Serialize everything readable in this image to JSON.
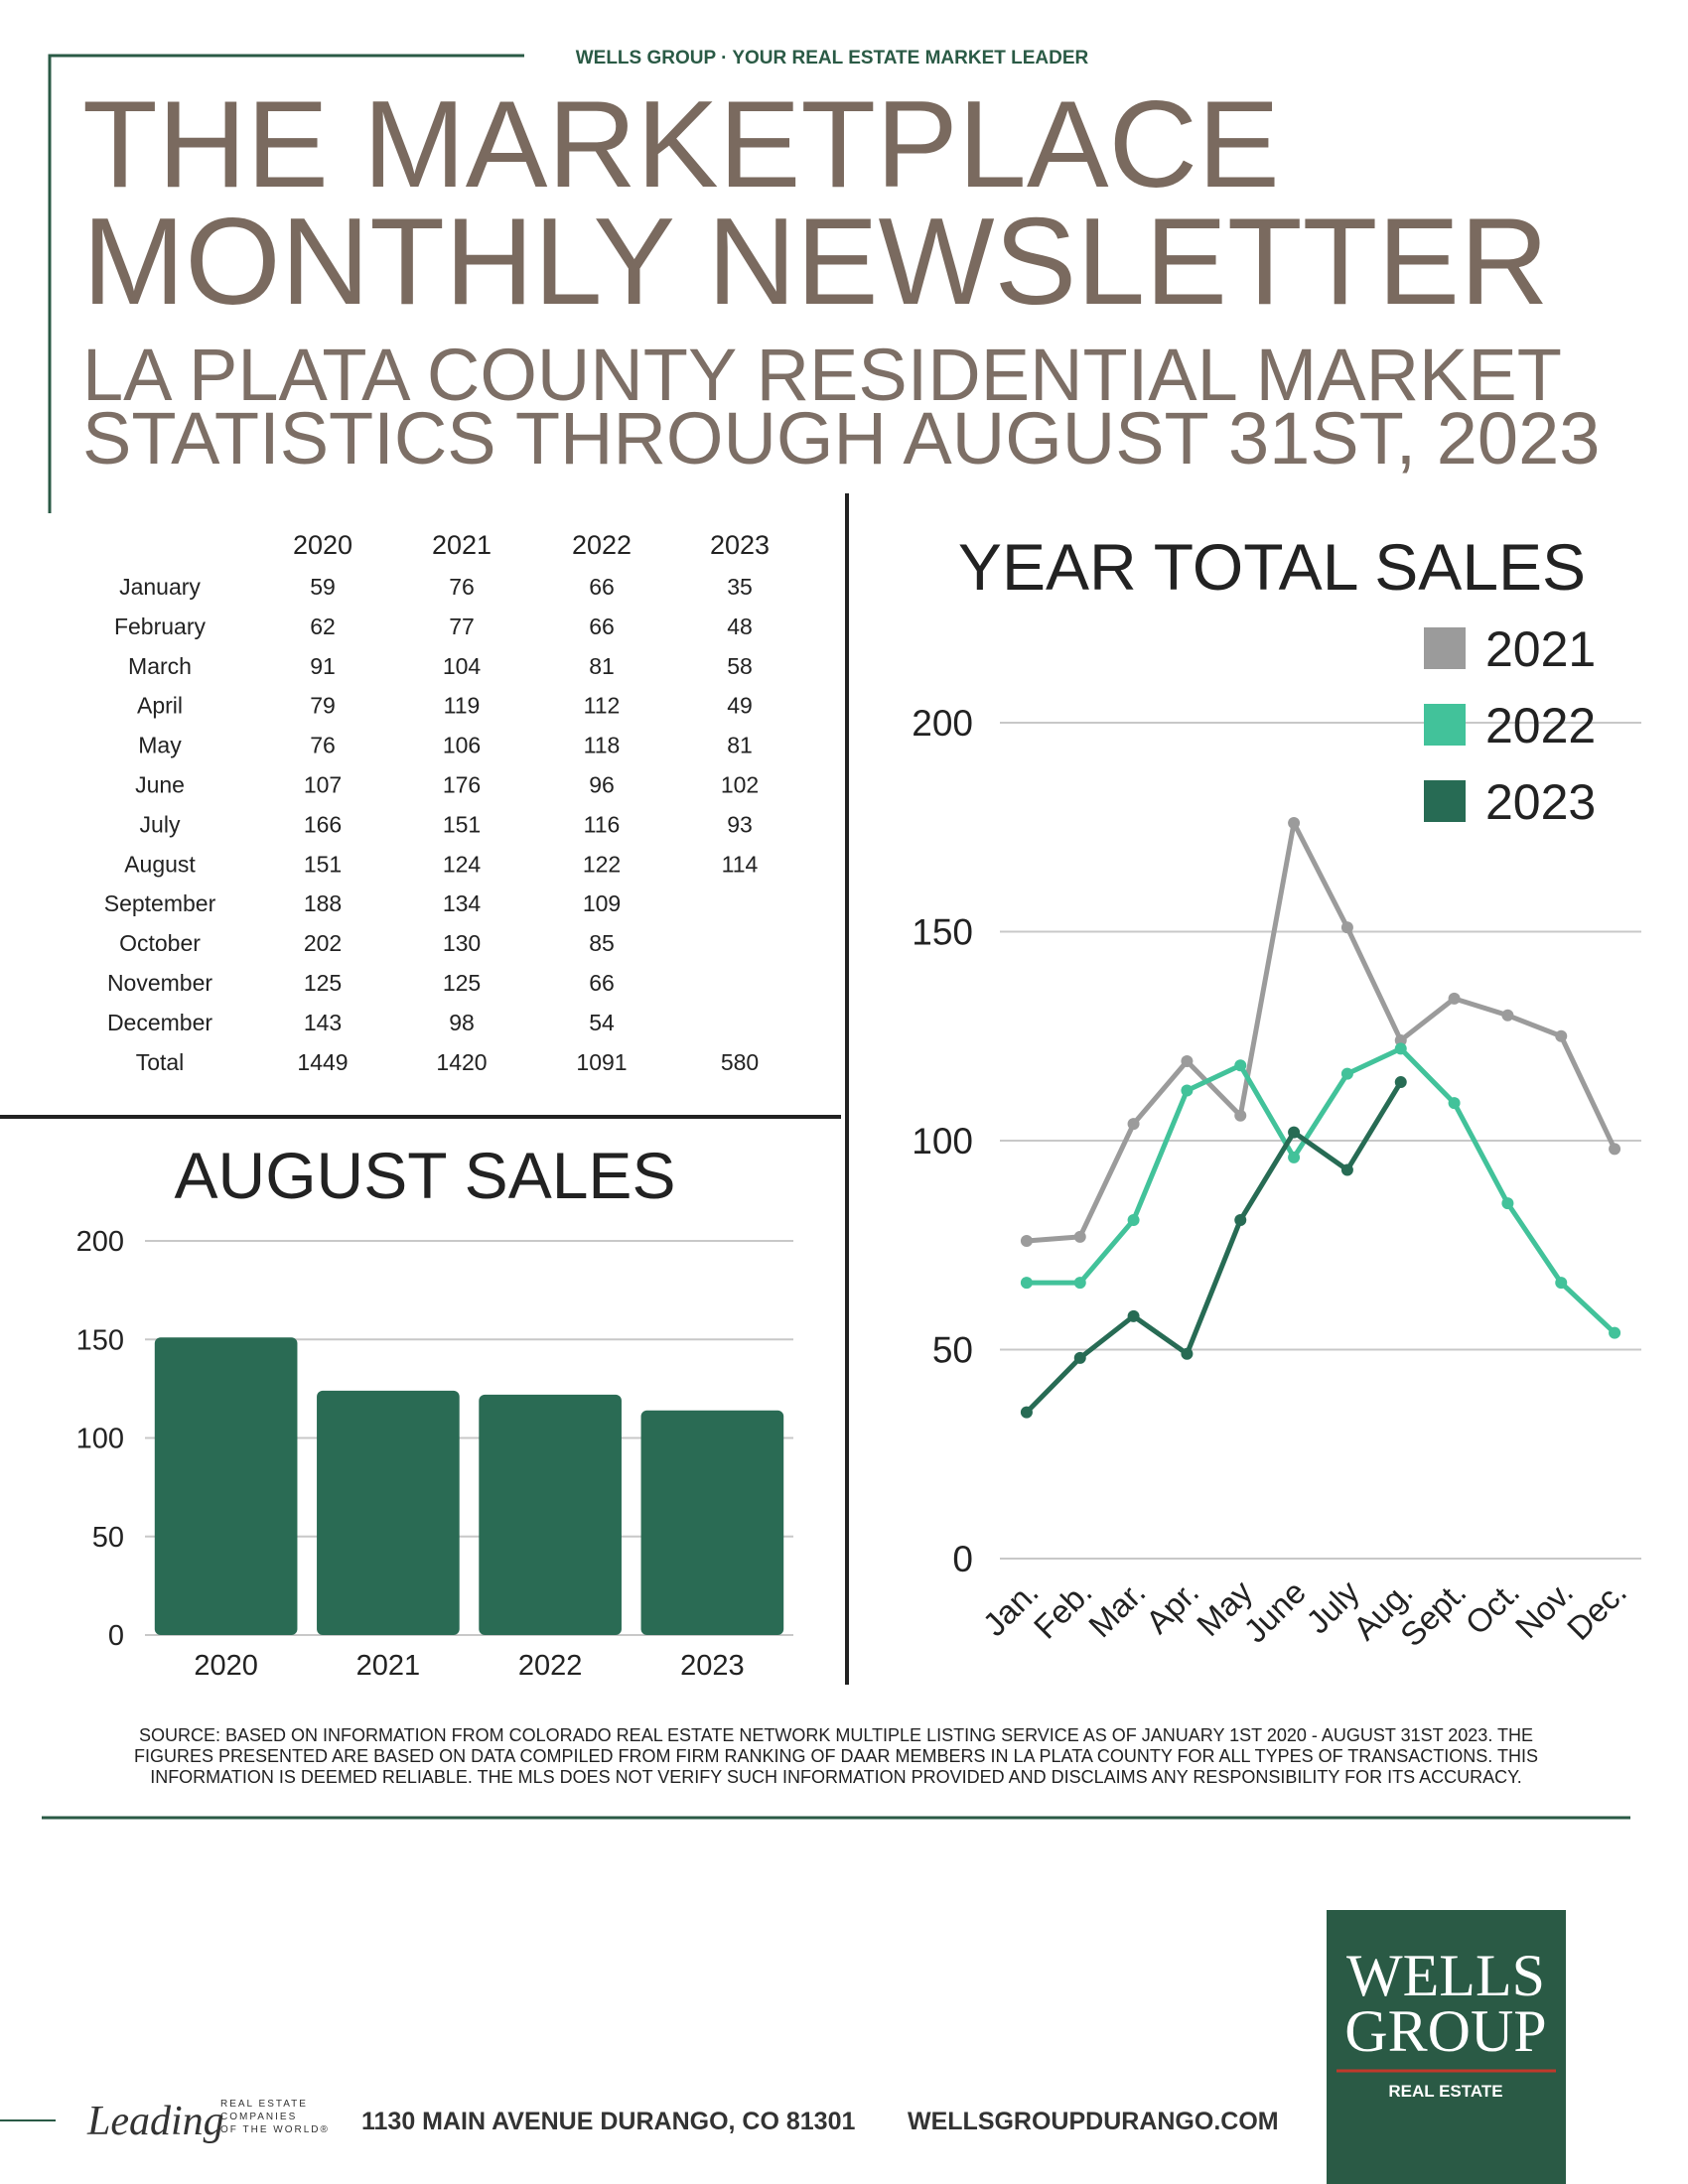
{
  "header": {
    "tagline": "WELLS GROUP · YOUR REAL ESTATE MARKET LEADER",
    "title_lines": [
      "THE MARKETPLACE",
      "MONTHLY NEWSLETTER"
    ],
    "subtitle_lines": [
      "LA PLATA COUNTY RESIDENTIAL MARKET",
      "STATISTICS THROUGH AUGUST 31ST, 2023"
    ]
  },
  "table": {
    "columns": [
      "2020",
      "2021",
      "2022",
      "2023"
    ],
    "rows": [
      [
        "January",
        59,
        76,
        66,
        35
      ],
      [
        "February",
        62,
        77,
        66,
        48
      ],
      [
        "March",
        91,
        104,
        81,
        58
      ],
      [
        "April",
        79,
        119,
        112,
        49
      ],
      [
        "May",
        76,
        106,
        118,
        81
      ],
      [
        "June",
        107,
        176,
        96,
        102
      ],
      [
        "July",
        166,
        151,
        116,
        93
      ],
      [
        "August",
        151,
        124,
        122,
        114
      ],
      [
        "September",
        188,
        134,
        109
      ],
      [
        "October",
        202,
        130,
        85
      ],
      [
        "November",
        125,
        125,
        66
      ],
      [
        "December",
        143,
        98,
        54
      ],
      [
        "Total",
        1449,
        1420,
        1091,
        580
      ]
    ]
  },
  "chart_data": [
    {
      "type": "bar",
      "title": "AUGUST SALES",
      "categories": [
        "2020",
        "2021",
        "2022",
        "2023"
      ],
      "values": [
        151,
        124,
        122,
        114
      ],
      "color": "#2a6b54",
      "ylim": [
        0,
        200
      ],
      "yticks": [
        0,
        50,
        100,
        150,
        200
      ],
      "grid": true
    },
    {
      "type": "line",
      "title": "YEAR TOTAL SALES",
      "categories": [
        "Jan.",
        "Feb.",
        "Mar.",
        "Apr.",
        "May",
        "June",
        "July",
        "Aug.",
        "Sept.",
        "Oct.",
        "Nov.",
        "Dec."
      ],
      "series": [
        {
          "name": "2021",
          "color": "#9b9b9b",
          "values": [
            76,
            77,
            104,
            119,
            106,
            176,
            151,
            124,
            134,
            130,
            125,
            98
          ]
        },
        {
          "name": "2022",
          "color": "#42c29a",
          "values": [
            66,
            66,
            81,
            112,
            118,
            96,
            116,
            122,
            109,
            85,
            66,
            54
          ]
        },
        {
          "name": "2023",
          "color": "#276b54",
          "values": [
            35,
            48,
            58,
            49,
            81,
            102,
            93,
            114,
            null,
            null,
            null,
            null
          ]
        }
      ],
      "ylim": [
        0,
        200
      ],
      "yticks": [
        0,
        50,
        100,
        150,
        200
      ],
      "grid": true,
      "legend": "top-right"
    }
  ],
  "source_lines": [
    "SOURCE: BASED ON INFORMATION FROM COLORADO REAL ESTATE NETWORK MULTIPLE LISTING SERVICE AS OF JANUARY 1ST 2020 - AUGUST 31ST 2023. THE",
    "FIGURES PRESENTED ARE BASED ON DATA COMPILED FROM FIRM RANKING OF DAAR MEMBERS IN LA PLATA COUNTY FOR ALL TYPES OF TRANSACTIONS. THIS",
    "INFORMATION IS DEEMED RELIABLE. THE MLS DOES NOT VERIFY SUCH INFORMATION PROVIDED AND DISCLAIMS ANY RESPONSIBILITY FOR ITS ACCURACY."
  ],
  "footer": {
    "leading": "Leading",
    "leading_sub": [
      "REAL ESTATE",
      "COMPANIES",
      "OF THE WORLD®"
    ],
    "address": "1130 MAIN AVENUE DURANGO, CO 81301",
    "website": "WELLSGROUPDURANGO.COM",
    "logo_lines": [
      "WELLS",
      "GROUP"
    ],
    "logo_sub": "REAL ESTATE"
  }
}
